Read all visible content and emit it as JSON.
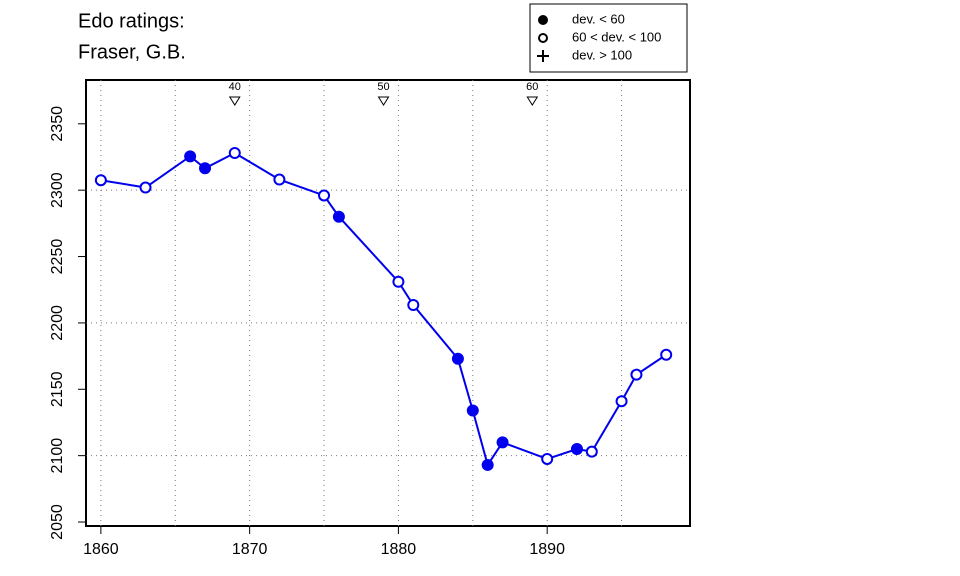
{
  "chart_data": {
    "type": "line",
    "title": "Edo ratings:",
    "subtitle": "Fraser, G.B.",
    "x": [
      1860,
      1863,
      1866,
      1867,
      1869,
      1872,
      1875,
      1876,
      1880,
      1881,
      1884,
      1885,
      1886,
      1887,
      1890,
      1892,
      1893,
      1895,
      1896,
      1898
    ],
    "series": [
      {
        "color": "#0000ee",
        "values": [
          2307.5,
          2302,
          2325.5,
          2316.5,
          2328,
          2308,
          2296,
          2280,
          2231,
          2213.5,
          2173,
          2134,
          2093,
          2110,
          2097.5,
          2105,
          2103,
          2141,
          2161,
          2176
        ],
        "markers": [
          "open",
          "open",
          "filled",
          "filled",
          "open",
          "open",
          "open",
          "filled",
          "open",
          "open",
          "filled",
          "filled",
          "filled",
          "filled",
          "open",
          "filled",
          "open",
          "open",
          "open",
          "open"
        ]
      }
    ],
    "legend": [
      {
        "marker": "filled",
        "label": "dev. < 60"
      },
      {
        "marker": "open",
        "label": "60 < dev. < 100"
      },
      {
        "marker": "plus",
        "label": "dev. > 100"
      }
    ],
    "age_marks": [
      {
        "x": 1869,
        "age": 40
      },
      {
        "x": 1879,
        "age": 50
      },
      {
        "x": 1889,
        "age": 60
      }
    ],
    "xlim": [
      1859,
      1899.6
    ],
    "ylim": [
      2047,
      2383
    ],
    "xticks": [
      1860,
      1870,
      1880,
      1890
    ],
    "yticks": [
      2050,
      2100,
      2150,
      2200,
      2250,
      2300,
      2350
    ],
    "xgrid": [
      1860,
      1865,
      1870,
      1875,
      1880,
      1885,
      1890,
      1895
    ],
    "ygrid": [
      2100,
      2200,
      2300
    ]
  }
}
